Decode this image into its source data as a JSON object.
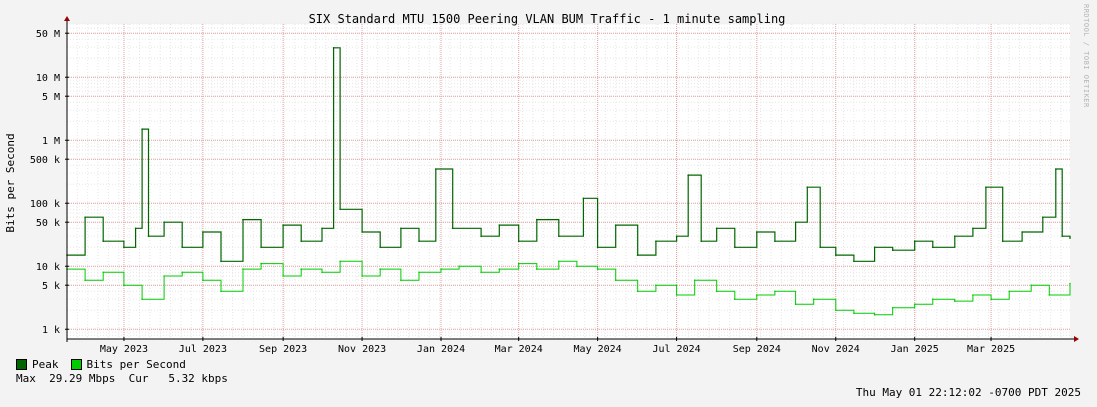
{
  "chart_data": {
    "type": "area",
    "title": "SIX Standard MTU 1500 Peering VLAN BUM Traffic - 1 minute sampling",
    "ylabel": "Bits per Second",
    "xlabel": "",
    "y_scale": "log",
    "ylim": [
      700,
      70000000
    ],
    "xlim": [
      "2023-03-18",
      "2025-05-01"
    ],
    "y_ticks": [
      {
        "value": 1000,
        "label": "1 k"
      },
      {
        "value": 5000,
        "label": "5 k"
      },
      {
        "value": 10000,
        "label": "10 k"
      },
      {
        "value": 50000,
        "label": "50 k"
      },
      {
        "value": 100000,
        "label": "100 k"
      },
      {
        "value": 500000,
        "label": "500 k"
      },
      {
        "value": 1000000,
        "label": "1 M"
      },
      {
        "value": 5000000,
        "label": "5 M"
      },
      {
        "value": 10000000,
        "label": "10 M"
      },
      {
        "value": 50000000,
        "label": "50 M"
      }
    ],
    "x_ticks": [
      {
        "date": "2023-05-01",
        "label": "May 2023"
      },
      {
        "date": "2023-07-01",
        "label": "Jul 2023"
      },
      {
        "date": "2023-09-01",
        "label": "Sep 2023"
      },
      {
        "date": "2023-11-01",
        "label": "Nov 2023"
      },
      {
        "date": "2024-01-01",
        "label": "Jan 2024"
      },
      {
        "date": "2024-03-01",
        "label": "Mar 2024"
      },
      {
        "date": "2024-05-01",
        "label": "May 2024"
      },
      {
        "date": "2024-07-01",
        "label": "Jul 2024"
      },
      {
        "date": "2024-09-01",
        "label": "Sep 2024"
      },
      {
        "date": "2024-11-01",
        "label": "Nov 2024"
      },
      {
        "date": "2025-01-01",
        "label": "Jan 2025"
      },
      {
        "date": "2025-03-01",
        "label": "Mar 2025"
      }
    ],
    "grid": true,
    "series": [
      {
        "name": "Peak",
        "color": "#006600",
        "points": [
          [
            "2023-03-18",
            15000
          ],
          [
            "2023-04-01",
            60000
          ],
          [
            "2023-04-15",
            25000
          ],
          [
            "2023-05-01",
            20000
          ],
          [
            "2023-05-10",
            40000
          ],
          [
            "2023-05-15",
            1500000
          ],
          [
            "2023-05-20",
            30000
          ],
          [
            "2023-06-01",
            50000
          ],
          [
            "2023-06-15",
            20000
          ],
          [
            "2023-07-01",
            35000
          ],
          [
            "2023-07-15",
            12000
          ],
          [
            "2023-08-01",
            55000
          ],
          [
            "2023-08-15",
            20000
          ],
          [
            "2023-09-01",
            45000
          ],
          [
            "2023-09-15",
            25000
          ],
          [
            "2023-10-01",
            40000
          ],
          [
            "2023-10-10",
            29290000
          ],
          [
            "2023-10-15",
            80000
          ],
          [
            "2023-11-01",
            35000
          ],
          [
            "2023-11-15",
            20000
          ],
          [
            "2023-12-01",
            40000
          ],
          [
            "2023-12-15",
            25000
          ],
          [
            "2023-12-28",
            350000
          ],
          [
            "2024-01-10",
            40000
          ],
          [
            "2024-02-01",
            30000
          ],
          [
            "2024-02-15",
            45000
          ],
          [
            "2024-03-01",
            25000
          ],
          [
            "2024-03-15",
            55000
          ],
          [
            "2024-04-01",
            30000
          ],
          [
            "2024-04-20",
            120000
          ],
          [
            "2024-05-01",
            20000
          ],
          [
            "2024-05-15",
            45000
          ],
          [
            "2024-06-01",
            15000
          ],
          [
            "2024-06-15",
            25000
          ],
          [
            "2024-07-01",
            30000
          ],
          [
            "2024-07-10",
            280000
          ],
          [
            "2024-07-20",
            25000
          ],
          [
            "2024-08-01",
            40000
          ],
          [
            "2024-08-15",
            20000
          ],
          [
            "2024-09-01",
            35000
          ],
          [
            "2024-09-15",
            25000
          ],
          [
            "2024-10-01",
            50000
          ],
          [
            "2024-10-10",
            180000
          ],
          [
            "2024-10-20",
            20000
          ],
          [
            "2024-11-01",
            15000
          ],
          [
            "2024-11-15",
            12000
          ],
          [
            "2024-12-01",
            20000
          ],
          [
            "2024-12-15",
            18000
          ],
          [
            "2025-01-01",
            25000
          ],
          [
            "2025-01-15",
            20000
          ],
          [
            "2025-02-01",
            30000
          ],
          [
            "2025-02-15",
            40000
          ],
          [
            "2025-02-25",
            180000
          ],
          [
            "2025-03-10",
            25000
          ],
          [
            "2025-03-25",
            35000
          ],
          [
            "2025-04-10",
            60000
          ],
          [
            "2025-04-20",
            350000
          ],
          [
            "2025-04-25",
            30000
          ],
          [
            "2025-05-01",
            28000
          ]
        ]
      },
      {
        "name": "Bits per Second",
        "color": "#00cc00",
        "points": [
          [
            "2023-03-18",
            9000
          ],
          [
            "2023-04-01",
            6000
          ],
          [
            "2023-04-15",
            8000
          ],
          [
            "2023-05-01",
            5000
          ],
          [
            "2023-05-15",
            3000
          ],
          [
            "2023-06-01",
            7000
          ],
          [
            "2023-06-15",
            8000
          ],
          [
            "2023-07-01",
            6000
          ],
          [
            "2023-07-15",
            4000
          ],
          [
            "2023-08-01",
            9000
          ],
          [
            "2023-08-15",
            11000
          ],
          [
            "2023-09-01",
            7000
          ],
          [
            "2023-09-15",
            9000
          ],
          [
            "2023-10-01",
            8000
          ],
          [
            "2023-10-15",
            12000
          ],
          [
            "2023-11-01",
            7000
          ],
          [
            "2023-11-15",
            9000
          ],
          [
            "2023-12-01",
            6000
          ],
          [
            "2023-12-15",
            8000
          ],
          [
            "2024-01-01",
            9000
          ],
          [
            "2024-01-15",
            10000
          ],
          [
            "2024-02-01",
            8000
          ],
          [
            "2024-02-15",
            9000
          ],
          [
            "2024-03-01",
            11000
          ],
          [
            "2024-03-15",
            9000
          ],
          [
            "2024-04-01",
            12000
          ],
          [
            "2024-04-15",
            10000
          ],
          [
            "2024-05-01",
            9000
          ],
          [
            "2024-05-15",
            6000
          ],
          [
            "2024-06-01",
            4000
          ],
          [
            "2024-06-15",
            5000
          ],
          [
            "2024-07-01",
            3500
          ],
          [
            "2024-07-15",
            6000
          ],
          [
            "2024-08-01",
            4000
          ],
          [
            "2024-08-15",
            3000
          ],
          [
            "2024-09-01",
            3500
          ],
          [
            "2024-09-15",
            4000
          ],
          [
            "2024-10-01",
            2500
          ],
          [
            "2024-10-15",
            3000
          ],
          [
            "2024-11-01",
            2000
          ],
          [
            "2024-11-15",
            1800
          ],
          [
            "2024-12-01",
            1700
          ],
          [
            "2024-12-15",
            2200
          ],
          [
            "2025-01-01",
            2500
          ],
          [
            "2025-01-15",
            3000
          ],
          [
            "2025-02-01",
            2800
          ],
          [
            "2025-02-15",
            3500
          ],
          [
            "2025-03-01",
            3000
          ],
          [
            "2025-03-15",
            4000
          ],
          [
            "2025-04-01",
            5000
          ],
          [
            "2025-04-15",
            3500
          ],
          [
            "2025-05-01",
            5320
          ]
        ]
      }
    ],
    "legend": {
      "placement": "bottom-left",
      "entries": [
        {
          "label": "Peak",
          "color": "#006600"
        },
        {
          "label": "Bits per Second",
          "color": "#00cc00"
        }
      ]
    },
    "stats_text": "Max  29.29 Mbps  Cur   5.32 kbps",
    "max_value": "29.29 Mbps",
    "current_value": "5.32 kbps",
    "timestamp": "Thu May 01 22:12:02 -0700 PDT 2025",
    "watermark": "RRDTOOL / TOBI OETIKER"
  }
}
